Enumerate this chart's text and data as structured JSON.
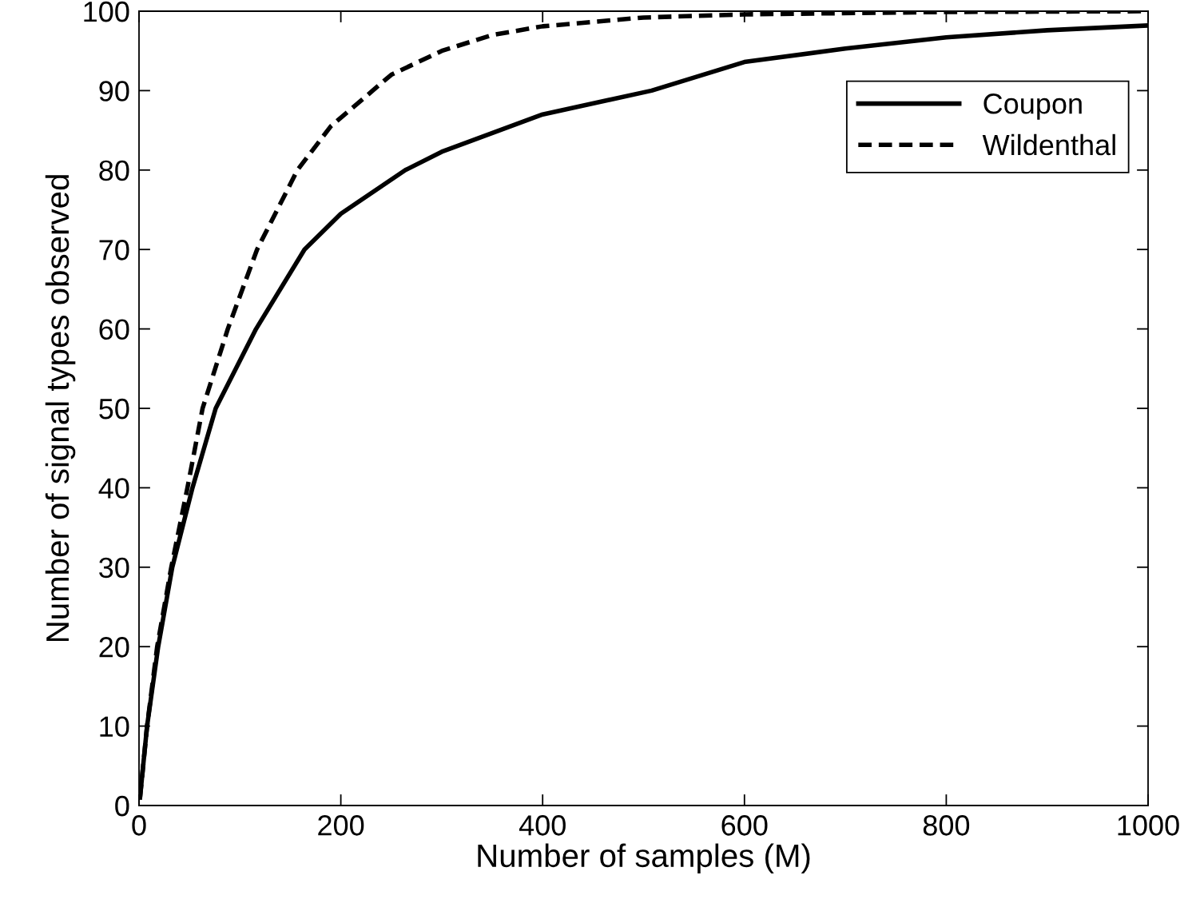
{
  "chart_data": {
    "type": "line",
    "xlabel": "Number of samples (M)",
    "ylabel": "Number of signal types observed",
    "xlim": [
      0,
      1000
    ],
    "ylim": [
      0,
      100
    ],
    "xticks": [
      0,
      200,
      400,
      600,
      800,
      1000
    ],
    "yticks": [
      0,
      10,
      20,
      30,
      40,
      50,
      60,
      70,
      80,
      90,
      100
    ],
    "grid": false,
    "legend": "top right",
    "marker": "none",
    "series": [
      {
        "name": "Coupon",
        "color": "#000000",
        "line_style": "solid",
        "x": [
          1,
          8,
          19,
          33,
          53,
          76,
          116,
          164,
          200,
          264,
          300,
          400,
          508,
          600,
          700,
          800,
          900,
          1000
        ],
        "values": [
          1,
          10,
          20,
          30,
          40,
          50,
          60,
          70,
          74.5,
          80,
          82.3,
          87,
          90,
          93.6,
          95.3,
          96.7,
          97.6,
          98.2
        ]
      },
      {
        "name": "Wildenthal",
        "color": "#000000",
        "line_style": "dashed",
        "x": [
          1,
          8,
          18,
          32,
          48,
          63,
          88,
          117,
          157,
          190,
          250,
          300,
          350,
          400,
          500,
          600,
          800,
          1000
        ],
        "values": [
          1,
          10,
          20,
          30,
          40,
          50,
          60,
          70,
          80,
          85.5,
          92,
          95,
          97,
          98.1,
          99.2,
          99.6,
          99.9,
          100
        ]
      }
    ]
  }
}
